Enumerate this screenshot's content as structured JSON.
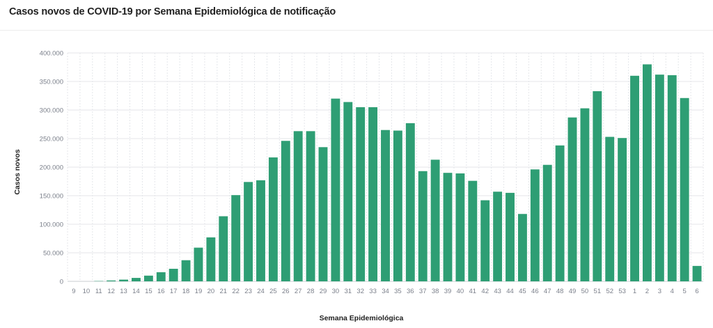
{
  "title": "Casos novos de COVID-19 por Semana Epidemiológica de notificação",
  "colors": {
    "bar": "#2e9e74",
    "grid": "#e4e6ea",
    "tick": "#7a7f8a"
  },
  "chart_data": {
    "type": "bar",
    "title": "Casos novos de COVID-19 por Semana Epidemiológica de notificação",
    "xlabel": "Semana Epidemiológica",
    "ylabel": "Casos novos",
    "ylim": [
      0,
      400000
    ],
    "yticks": [
      "0",
      "50.000",
      "100.000",
      "150.000",
      "200.000",
      "250.000",
      "300.000",
      "350.000",
      "400.000"
    ],
    "grid": true,
    "categories": [
      "9",
      "10",
      "11",
      "12",
      "13",
      "14",
      "15",
      "16",
      "17",
      "18",
      "19",
      "20",
      "21",
      "22",
      "23",
      "24",
      "25",
      "26",
      "27",
      "28",
      "29",
      "30",
      "31",
      "32",
      "33",
      "34",
      "35",
      "36",
      "37",
      "38",
      "39",
      "40",
      "41",
      "42",
      "43",
      "44",
      "45",
      "46",
      "47",
      "48",
      "49",
      "50",
      "51",
      "52",
      "53",
      "1",
      "2",
      "3",
      "4",
      "5",
      "6"
    ],
    "values": [
      0,
      0,
      500,
      1500,
      3000,
      6000,
      10000,
      16000,
      22000,
      37000,
      59000,
      77000,
      114000,
      151000,
      174000,
      177000,
      217000,
      246000,
      263000,
      263000,
      235000,
      320000,
      314000,
      305000,
      305000,
      265000,
      264000,
      277000,
      193000,
      213000,
      190000,
      189000,
      176000,
      142000,
      157000,
      155000,
      118000,
      196000,
      204000,
      238000,
      287000,
      303000,
      333000,
      253000,
      251000,
      360000,
      380000,
      362000,
      361000,
      321000,
      27000
    ]
  }
}
